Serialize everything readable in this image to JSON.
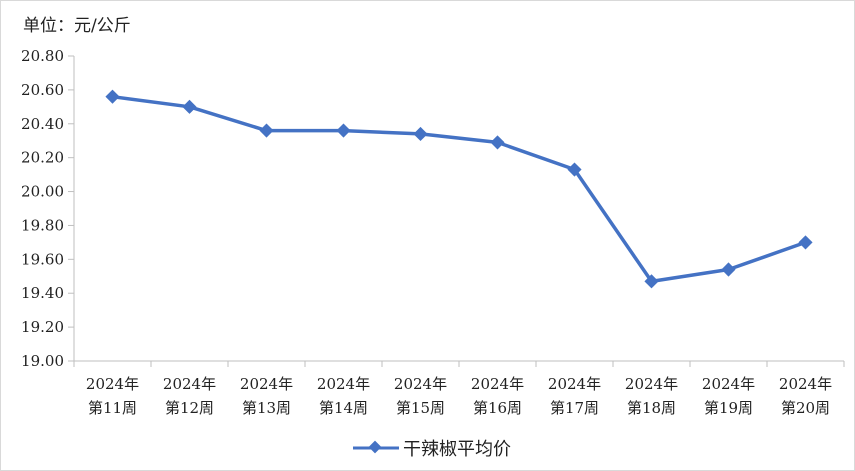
{
  "chart_data": {
    "type": "line",
    "unit_label": "单位：元/公斤",
    "categories": [
      [
        "2024年",
        "第11周"
      ],
      [
        "2024年",
        "第12周"
      ],
      [
        "2024年",
        "第13周"
      ],
      [
        "2024年",
        "第14周"
      ],
      [
        "2024年",
        "第15周"
      ],
      [
        "2024年",
        "第16周"
      ],
      [
        "2024年",
        "第17周"
      ],
      [
        "2024年",
        "第18周"
      ],
      [
        "2024年",
        "第19周"
      ],
      [
        "2024年",
        "第20周"
      ]
    ],
    "series": [
      {
        "name": "干辣椒平均价",
        "color": "#4472c4",
        "values": [
          20.56,
          20.5,
          20.36,
          20.36,
          20.34,
          20.29,
          20.13,
          19.47,
          19.54,
          19.7
        ]
      }
    ],
    "ylim": [
      19.0,
      20.8
    ],
    "yticks": [
      "19.00",
      "19.20",
      "19.40",
      "19.60",
      "19.80",
      "20.00",
      "20.20",
      "20.40",
      "20.60",
      "20.80"
    ],
    "grid": false,
    "legend_position": "bottom"
  }
}
